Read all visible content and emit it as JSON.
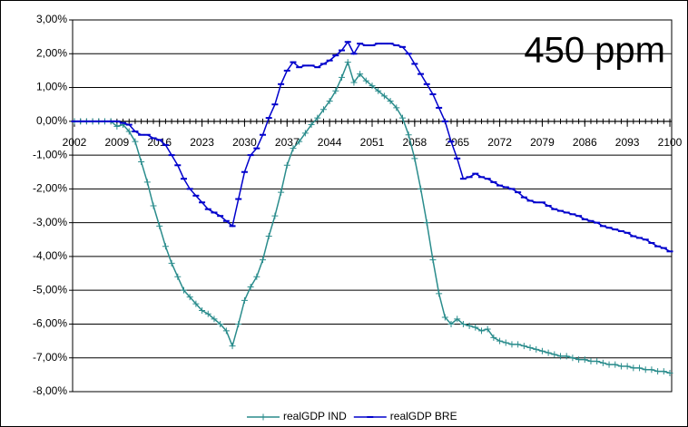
{
  "chart_data": {
    "type": "line",
    "annotation": "450 ppm",
    "x": [
      2002,
      2003,
      2004,
      2005,
      2006,
      2007,
      2008,
      2009,
      2010,
      2011,
      2012,
      2013,
      2014,
      2015,
      2016,
      2017,
      2018,
      2019,
      2020,
      2021,
      2022,
      2023,
      2024,
      2025,
      2026,
      2027,
      2028,
      2029,
      2030,
      2031,
      2032,
      2033,
      2034,
      2035,
      2036,
      2037,
      2038,
      2039,
      2040,
      2041,
      2042,
      2043,
      2044,
      2045,
      2046,
      2047,
      2048,
      2049,
      2050,
      2051,
      2052,
      2053,
      2054,
      2055,
      2056,
      2057,
      2058,
      2059,
      2060,
      2061,
      2062,
      2063,
      2064,
      2065,
      2066,
      2067,
      2068,
      2069,
      2070,
      2071,
      2072,
      2073,
      2074,
      2075,
      2076,
      2077,
      2078,
      2079,
      2080,
      2081,
      2082,
      2083,
      2084,
      2085,
      2086,
      2087,
      2088,
      2089,
      2090,
      2091,
      2092,
      2093,
      2094,
      2095,
      2096,
      2097,
      2098,
      2099,
      2100
    ],
    "series": [
      {
        "name": "realGDP IND",
        "color": "#2a8c8c",
        "marker": "plus",
        "values": [
          0,
          0,
          0,
          0,
          0,
          0,
          0,
          -0.15,
          -0.1,
          -0.3,
          -0.6,
          -1.2,
          -1.8,
          -2.5,
          -3.1,
          -3.7,
          -4.2,
          -4.6,
          -5.0,
          -5.2,
          -5.4,
          -5.6,
          -5.7,
          -5.85,
          -6.0,
          -6.2,
          -6.65,
          -6.0,
          -5.3,
          -4.9,
          -4.6,
          -4.1,
          -3.4,
          -2.8,
          -2.1,
          -1.3,
          -0.8,
          -0.6,
          -0.35,
          -0.1,
          0.1,
          0.35,
          0.6,
          0.9,
          1.3,
          1.75,
          1.15,
          1.4,
          1.2,
          1.05,
          0.9,
          0.75,
          0.6,
          0.4,
          0.1,
          -0.4,
          -1.1,
          -2.0,
          -3.0,
          -4.1,
          -5.1,
          -5.8,
          -6.0,
          -5.85,
          -6.0,
          -6.05,
          -6.1,
          -6.2,
          -6.15,
          -6.4,
          -6.5,
          -6.55,
          -6.6,
          -6.6,
          -6.65,
          -6.7,
          -6.75,
          -6.8,
          -6.85,
          -6.9,
          -6.95,
          -6.95,
          -7.0,
          -7.05,
          -7.05,
          -7.1,
          -7.1,
          -7.15,
          -7.2,
          -7.2,
          -7.25,
          -7.25,
          -7.3,
          -7.3,
          -7.35,
          -7.35,
          -7.4,
          -7.4,
          -7.45
        ]
      },
      {
        "name": "realGDP BRE",
        "color": "#0000cc",
        "marker": "dash",
        "values": [
          0,
          0,
          0,
          0,
          0,
          0,
          0,
          0,
          -0.05,
          -0.1,
          -0.3,
          -0.4,
          -0.4,
          -0.5,
          -0.55,
          -0.7,
          -1.0,
          -1.3,
          -1.7,
          -2.0,
          -2.2,
          -2.4,
          -2.6,
          -2.7,
          -2.8,
          -2.95,
          -3.1,
          -2.3,
          -1.5,
          -1.0,
          -0.8,
          -0.4,
          0.1,
          0.5,
          1.1,
          1.5,
          1.75,
          1.6,
          1.65,
          1.65,
          1.6,
          1.7,
          1.8,
          1.95,
          2.1,
          2.35,
          2.0,
          2.3,
          2.25,
          2.25,
          2.3,
          2.3,
          2.3,
          2.25,
          2.2,
          2.0,
          1.7,
          1.4,
          1.1,
          0.8,
          0.4,
          0.0,
          -0.6,
          -1.1,
          -1.7,
          -1.65,
          -1.55,
          -1.65,
          -1.7,
          -1.8,
          -1.9,
          -1.95,
          -2.0,
          -2.1,
          -2.25,
          -2.35,
          -2.4,
          -2.4,
          -2.5,
          -2.6,
          -2.65,
          -2.7,
          -2.75,
          -2.8,
          -2.9,
          -2.95,
          -3.0,
          -3.1,
          -3.15,
          -3.2,
          -3.25,
          -3.3,
          -3.4,
          -3.45,
          -3.5,
          -3.6,
          -3.7,
          -3.75,
          -3.85
        ]
      }
    ],
    "xlim": [
      2002,
      2100
    ],
    "xticks": [
      2002,
      2009,
      2016,
      2023,
      2030,
      2037,
      2044,
      2051,
      2058,
      2065,
      2072,
      2079,
      2086,
      2093,
      2100
    ],
    "ylim": [
      -8,
      3
    ],
    "yticks": [
      {
        "value": 3,
        "label": "3,00%"
      },
      {
        "value": 2,
        "label": "2,00%"
      },
      {
        "value": 1,
        "label": "1,00%"
      },
      {
        "value": 0,
        "label": "0,00%"
      },
      {
        "value": -1,
        "label": "-1,00%"
      },
      {
        "value": -2,
        "label": "-2,00%"
      },
      {
        "value": -3,
        "label": "-3,00%"
      },
      {
        "value": -4,
        "label": "-4,00%"
      },
      {
        "value": -5,
        "label": "-5,00%"
      },
      {
        "value": -6,
        "label": "-6,00%"
      },
      {
        "value": -7,
        "label": "-7,00%"
      },
      {
        "value": -8,
        "label": "-8,00%"
      }
    ],
    "grid": true,
    "legend": "bottom"
  }
}
